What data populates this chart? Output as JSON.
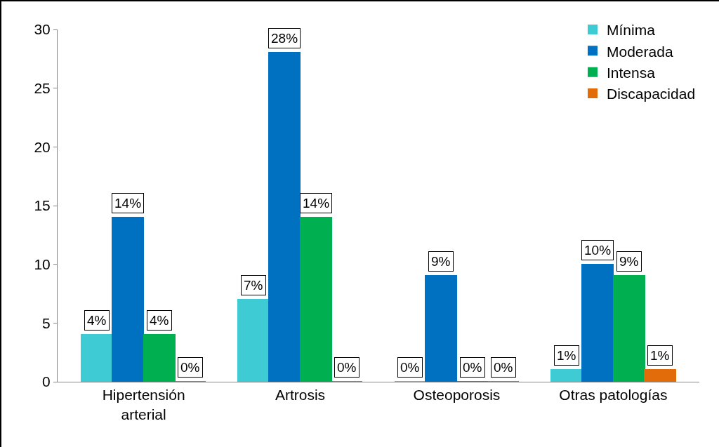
{
  "chart_data": {
    "type": "bar",
    "categories": [
      "Hipertensión arterial",
      "Artrosis",
      "Osteoporosis",
      "Otras patologías"
    ],
    "series": [
      {
        "name": "Mínima",
        "color": "#3fcbd3",
        "values": [
          4,
          7,
          0,
          1
        ],
        "value_labels": [
          "4%",
          "7%",
          "0%",
          "1%"
        ]
      },
      {
        "name": "Moderada",
        "color": "#0070c0",
        "values": [
          14,
          28,
          9,
          10
        ],
        "value_labels": [
          "14%",
          "28%",
          "9%",
          "10%"
        ]
      },
      {
        "name": "Intensa",
        "color": "#00b050",
        "values": [
          4,
          14,
          0,
          9
        ],
        "value_labels": [
          "4%",
          "14%",
          "0%",
          "9%"
        ]
      },
      {
        "name": "Discapacidad",
        "color": "#e36c0a",
        "values": [
          0,
          0,
          0,
          1
        ],
        "value_labels": [
          "0%",
          "0%",
          "0%",
          "1%"
        ]
      }
    ],
    "ylim": [
      0,
      30
    ],
    "yticks": [
      0,
      5,
      10,
      15,
      20,
      25,
      30
    ],
    "grid": false,
    "legend": "top right"
  }
}
